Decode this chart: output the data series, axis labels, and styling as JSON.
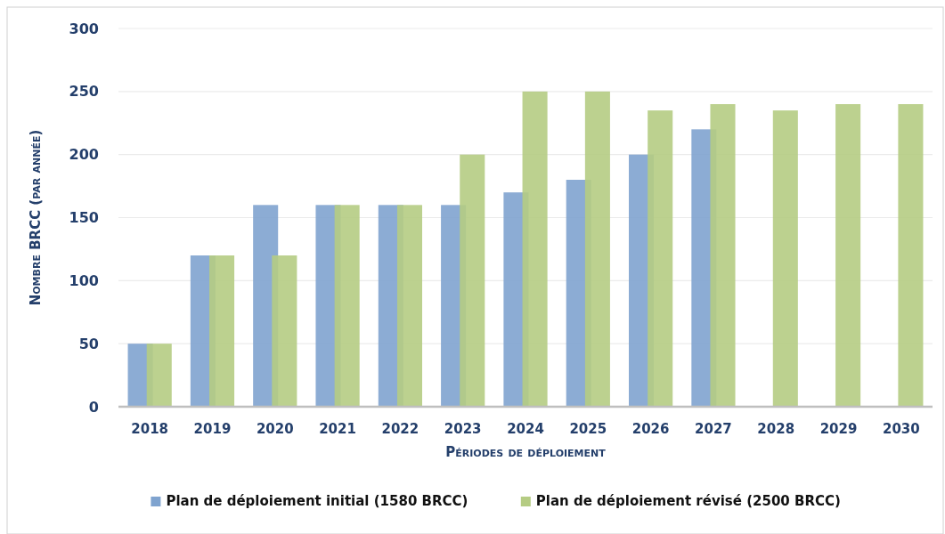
{
  "chart_data": {
    "type": "bar",
    "xlabel": "Périodes de déploiement",
    "ylabel": "Nombre BRCC (par année)",
    "categories": [
      "2018",
      "2019",
      "2020",
      "2021",
      "2022",
      "2023",
      "2024",
      "2025",
      "2026",
      "2027",
      "2028",
      "2029",
      "2030"
    ],
    "series": [
      {
        "name": "Plan de déploiement initial (1580 BRCC)",
        "color": "#7fa3cf",
        "values": [
          50,
          120,
          160,
          160,
          160,
          160,
          170,
          180,
          200,
          220,
          null,
          null,
          null
        ]
      },
      {
        "name": "Plan de déploiement révisé (2500 BRCC)",
        "color": "#b5cc83",
        "values": [
          50,
          120,
          120,
          160,
          160,
          200,
          250,
          250,
          235,
          240,
          235,
          240,
          240
        ]
      }
    ],
    "ylim": [
      0,
      300
    ],
    "yticks": [
      0,
      50,
      100,
      150,
      200,
      250,
      300
    ],
    "grid": "y",
    "legend": "bottom"
  }
}
